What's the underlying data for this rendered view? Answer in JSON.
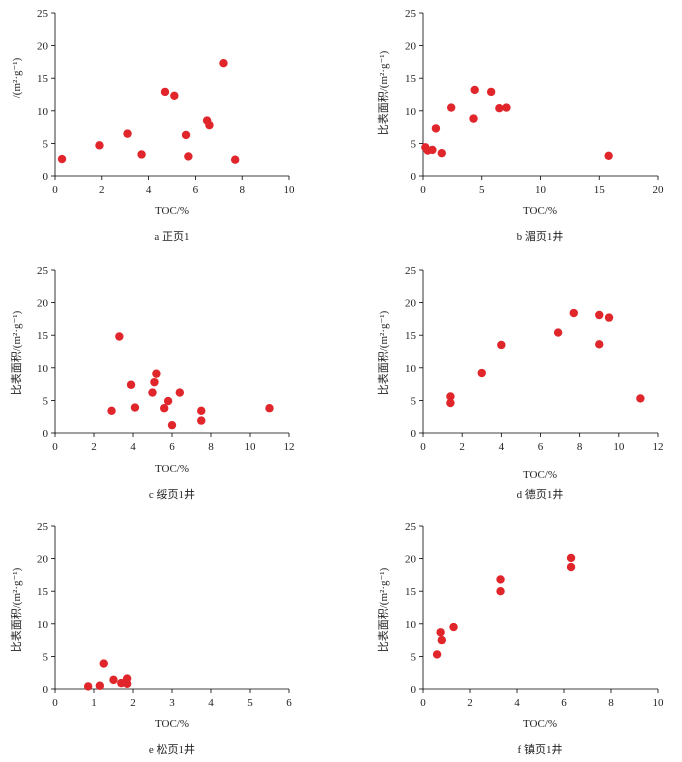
{
  "figure": {
    "marker_color": "#e0252b"
  },
  "chart_data": [
    {
      "type": "scatter",
      "caption": "a  正页1",
      "xlabel": "TOC/%",
      "ylabel": "/(m²·g⁻¹)",
      "xlim": [
        0,
        10
      ],
      "ylim": [
        0,
        25
      ],
      "xticks": [
        0,
        2,
        4,
        6,
        8,
        10
      ],
      "yticks": [
        0,
        5,
        10,
        15,
        20,
        25
      ],
      "points": [
        {
          "x": 0.3,
          "y": 2.6
        },
        {
          "x": 1.9,
          "y": 4.7
        },
        {
          "x": 3.1,
          "y": 6.5
        },
        {
          "x": 3.7,
          "y": 3.3
        },
        {
          "x": 4.7,
          "y": 12.9
        },
        {
          "x": 5.1,
          "y": 12.3
        },
        {
          "x": 5.6,
          "y": 6.3
        },
        {
          "x": 5.7,
          "y": 3.0
        },
        {
          "x": 6.5,
          "y": 8.5
        },
        {
          "x": 6.6,
          "y": 7.8
        },
        {
          "x": 7.2,
          "y": 17.3
        },
        {
          "x": 7.7,
          "y": 2.5
        }
      ]
    },
    {
      "type": "scatter",
      "caption": "b  湄页1井",
      "xlabel": "TOC/%",
      "ylabel": "比表面积/(m²·g⁻¹)",
      "xlim": [
        0,
        20
      ],
      "ylim": [
        0,
        25
      ],
      "xticks": [
        0,
        5,
        10,
        15,
        20
      ],
      "yticks": [
        0,
        5,
        10,
        15,
        20,
        25
      ],
      "points": [
        {
          "x": 0.2,
          "y": 4.4
        },
        {
          "x": 0.4,
          "y": 3.9
        },
        {
          "x": 0.8,
          "y": 4.0
        },
        {
          "x": 1.1,
          "y": 7.3
        },
        {
          "x": 1.6,
          "y": 3.5
        },
        {
          "x": 2.4,
          "y": 10.5
        },
        {
          "x": 4.3,
          "y": 8.8
        },
        {
          "x": 4.4,
          "y": 13.2
        },
        {
          "x": 5.8,
          "y": 12.9
        },
        {
          "x": 6.5,
          "y": 10.4
        },
        {
          "x": 7.1,
          "y": 10.5
        },
        {
          "x": 15.8,
          "y": 3.1
        }
      ]
    },
    {
      "type": "scatter",
      "caption": "c  绥页1井",
      "xlabel": "TOC/%",
      "ylabel": "比表面积/(m²·g⁻¹)",
      "xlim": [
        0,
        12
      ],
      "ylim": [
        0,
        25
      ],
      "xticks": [
        0,
        2,
        4,
        6,
        8,
        10,
        12
      ],
      "yticks": [
        0,
        5,
        10,
        15,
        20,
        25
      ],
      "points": [
        {
          "x": 2.9,
          "y": 3.4
        },
        {
          "x": 3.3,
          "y": 14.8
        },
        {
          "x": 3.9,
          "y": 7.4
        },
        {
          "x": 4.1,
          "y": 3.9
        },
        {
          "x": 5.0,
          "y": 6.2
        },
        {
          "x": 5.1,
          "y": 7.8
        },
        {
          "x": 5.2,
          "y": 9.1
        },
        {
          "x": 5.6,
          "y": 3.8
        },
        {
          "x": 5.8,
          "y": 4.9
        },
        {
          "x": 6.0,
          "y": 1.2
        },
        {
          "x": 6.4,
          "y": 6.2
        },
        {
          "x": 7.5,
          "y": 3.4
        },
        {
          "x": 7.5,
          "y": 1.9
        },
        {
          "x": 11.0,
          "y": 3.8
        }
      ]
    },
    {
      "type": "scatter",
      "caption": "d  德页1井",
      "xlabel": "TOC/%",
      "ylabel": "比表面积/(m²·g⁻¹)",
      "xlim": [
        0,
        12
      ],
      "ylim": [
        0,
        25
      ],
      "xticks": [
        0,
        2,
        4,
        6,
        8,
        10,
        12
      ],
      "yticks": [
        0,
        5,
        10,
        15,
        20,
        25
      ],
      "points": [
        {
          "x": 1.4,
          "y": 5.6
        },
        {
          "x": 1.4,
          "y": 4.6
        },
        {
          "x": 3.0,
          "y": 9.2
        },
        {
          "x": 4.0,
          "y": 13.5
        },
        {
          "x": 6.9,
          "y": 15.4
        },
        {
          "x": 7.7,
          "y": 18.4
        },
        {
          "x": 9.0,
          "y": 18.1
        },
        {
          "x": 9.0,
          "y": 13.6
        },
        {
          "x": 9.5,
          "y": 17.7
        },
        {
          "x": 11.1,
          "y": 5.3
        }
      ]
    },
    {
      "type": "scatter",
      "caption": "e  松页1井",
      "xlabel": "TOC/%",
      "ylabel": "比表面积/(m²·g⁻¹)",
      "xlim": [
        0,
        6
      ],
      "ylim": [
        0,
        25
      ],
      "xticks": [
        0,
        1,
        2,
        3,
        4,
        5,
        6
      ],
      "yticks": [
        0,
        5,
        10,
        15,
        20,
        25
      ],
      "points": [
        {
          "x": 0.85,
          "y": 0.4
        },
        {
          "x": 1.15,
          "y": 0.5
        },
        {
          "x": 1.25,
          "y": 3.9
        },
        {
          "x": 1.5,
          "y": 1.4
        },
        {
          "x": 1.7,
          "y": 0.9
        },
        {
          "x": 1.85,
          "y": 1.6
        },
        {
          "x": 1.85,
          "y": 0.8
        }
      ]
    },
    {
      "type": "scatter",
      "caption": "f  镇页1井",
      "xlabel": "TOC/%",
      "ylabel": "比表面积/(m²·g⁻¹)",
      "xlim": [
        0,
        10
      ],
      "ylim": [
        0,
        25
      ],
      "xticks": [
        0,
        2,
        4,
        6,
        8,
        10
      ],
      "yticks": [
        0,
        5,
        10,
        15,
        20,
        25
      ],
      "points": [
        {
          "x": 0.6,
          "y": 5.3
        },
        {
          "x": 0.75,
          "y": 8.7
        },
        {
          "x": 0.8,
          "y": 7.5
        },
        {
          "x": 1.3,
          "y": 9.5
        },
        {
          "x": 3.3,
          "y": 16.8
        },
        {
          "x": 3.3,
          "y": 15.0
        },
        {
          "x": 6.3,
          "y": 20.1
        },
        {
          "x": 6.3,
          "y": 18.7
        }
      ]
    }
  ]
}
